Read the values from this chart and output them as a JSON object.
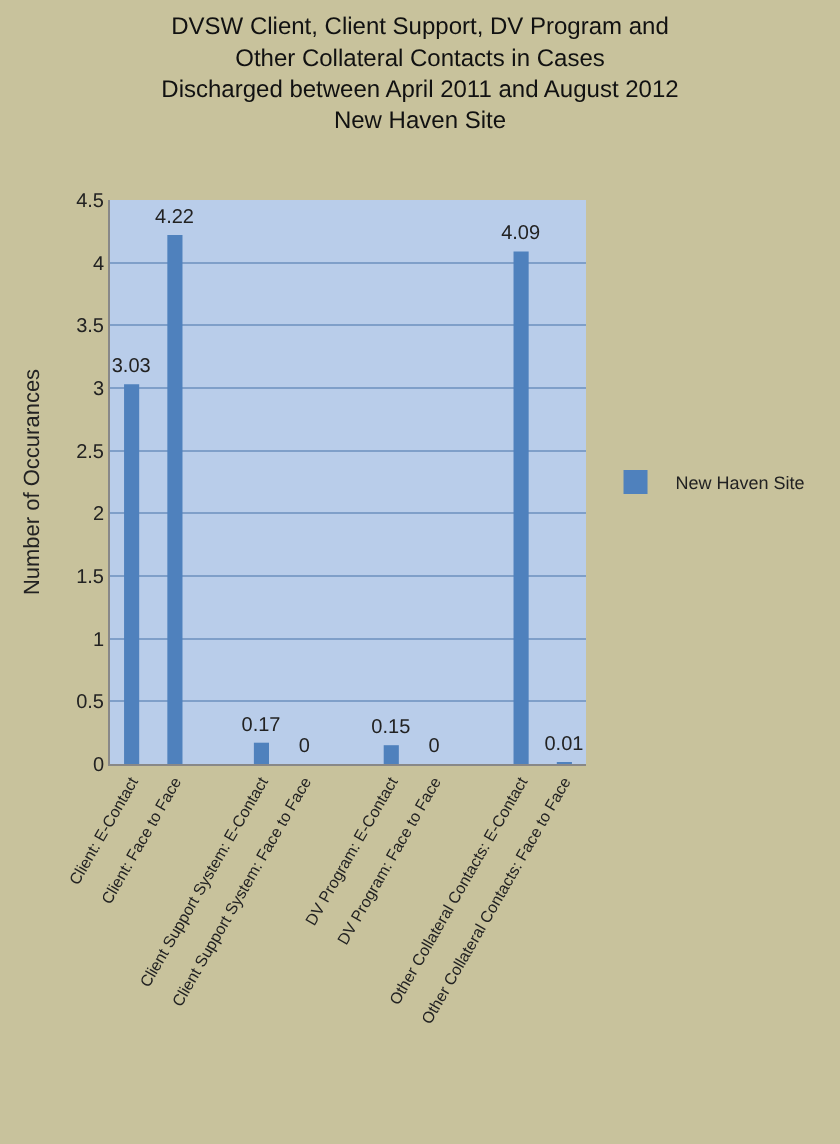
{
  "chart_data": {
    "type": "bar",
    "title": "DVSW Client, Client Support, DV Program and\nOther Collateral Contacts in Cases\nDischarged between April 2011 and August 2012\nNew Haven Site",
    "ylabel": "Number of Occurances",
    "categories": [
      "Client: E-Contact",
      "Client: Face to Face",
      null,
      "Client Support System: E-Contact",
      "Client Support System: Face to Face",
      null,
      "DV Program: E-Contact",
      "DV Program: Face to Face",
      null,
      "Other Collateral Contacts: E-Contact",
      "Other Collateral Contacts: Face to Face"
    ],
    "series": [
      {
        "name": "New Haven Site",
        "color": "#4f81bd",
        "values": [
          3.03,
          4.22,
          null,
          0.17,
          0,
          null,
          0.15,
          0,
          null,
          4.09,
          0.01
        ]
      }
    ],
    "ylim": [
      0,
      4.5
    ],
    "yticks": [
      0,
      0.5,
      1,
      1.5,
      2,
      2.5,
      3,
      3.5,
      4,
      4.5
    ],
    "grid": "y",
    "legend": "right",
    "data_labels": true
  }
}
